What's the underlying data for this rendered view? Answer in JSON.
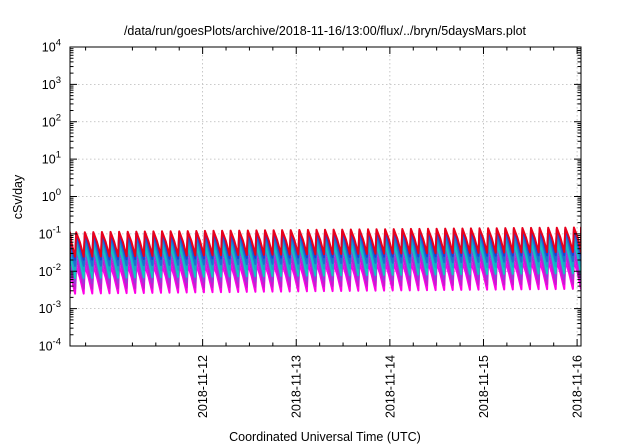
{
  "chart_data": {
    "type": "line",
    "title": "/data/run/goesPlots/archive/2018-11-16/13:00/flux/../bryn/5daysMars.plot",
    "xlabel": "Coordinated Universal Time (UTC)",
    "ylabel": "cSv/day",
    "y_scale": "log",
    "ylim": [
      0.0001,
      10000
    ],
    "xlim": [
      "2018-11-11T02:00",
      "2018-11-16T13:00"
    ],
    "y_ticks": [
      {
        "value": 0.0001,
        "base": "10",
        "exp": "-4"
      },
      {
        "value": 0.001,
        "base": "10",
        "exp": "-3"
      },
      {
        "value": 0.01,
        "base": "10",
        "exp": "-2"
      },
      {
        "value": 0.1,
        "base": "10",
        "exp": "-1"
      },
      {
        "value": 1,
        "base": "10",
        "exp": "0"
      },
      {
        "value": 10,
        "base": "10",
        "exp": "1"
      },
      {
        "value": 100,
        "base": "10",
        "exp": "2"
      },
      {
        "value": 1000,
        "base": "10",
        "exp": "3"
      },
      {
        "value": 10000,
        "base": "10",
        "exp": "4"
      }
    ],
    "x_ticks": [
      "2018-11-12",
      "2018-11-13",
      "2018-11-14",
      "2018-11-15",
      "2018-11-16"
    ],
    "grid": true,
    "legend": "none",
    "series_pattern": {
      "shape": "sawtooth",
      "cycle_hours": 2.2,
      "levels": [
        {
          "color": "#e8001c",
          "peak": 0.11,
          "trough": 0.02
        },
        {
          "color": "#1f3fd6",
          "peak": 0.1,
          "trough": 0.017
        },
        {
          "color": "#1e6fd0",
          "peak": 0.085,
          "trough": 0.012
        },
        {
          "color": "#1aa7c8",
          "peak": 0.065,
          "trough": 0.009
        },
        {
          "color": "#10c8c0",
          "peak": 0.045,
          "trough": 0.006
        },
        {
          "color": "#9b3ad8",
          "peak": 0.035,
          "trough": 0.0045
        },
        {
          "color": "#c81bd0",
          "peak": 0.022,
          "trough": 0.0033
        },
        {
          "color": "#ff00e6",
          "peak": 0.014,
          "trough": 0.0025
        }
      ]
    }
  }
}
